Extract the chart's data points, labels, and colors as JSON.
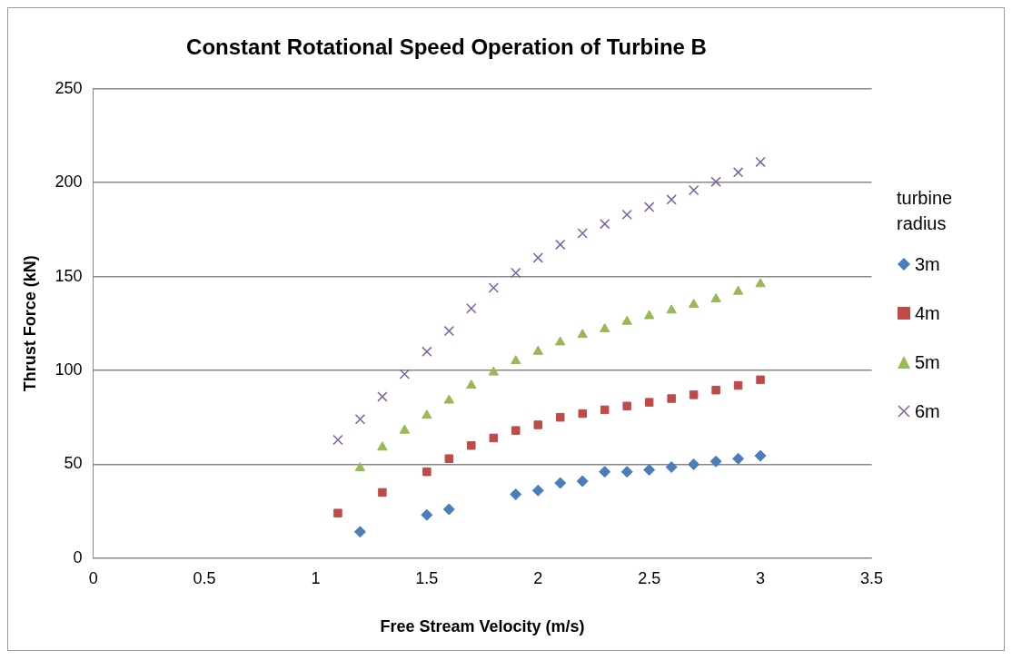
{
  "chart_data": {
    "type": "scatter",
    "title": "Constant Rotational Speed Operation of Turbine B",
    "xlabel": "Free Stream Velocity (m/s)",
    "ylabel": "Thrust Force (kN)",
    "legend_title": "turbine radius",
    "xlim": [
      0,
      3.5
    ],
    "xticks": [
      0,
      0.5,
      1,
      1.5,
      2,
      2.5,
      3,
      3.5
    ],
    "ylim": [
      0,
      250
    ],
    "yticks": [
      0,
      50,
      100,
      150,
      200,
      250
    ],
    "grid": "y",
    "legend": "right",
    "series": [
      {
        "name": "3m",
        "color": "#4a7ebb",
        "marker": "diamond",
        "x": [
          1.2,
          1.5,
          1.6,
          1.9,
          2.0,
          2.1,
          2.2,
          2.3,
          2.4,
          2.5,
          2.6,
          2.7,
          2.8,
          2.9,
          3.0
        ],
        "values": [
          14,
          23,
          26,
          34,
          36,
          40,
          41,
          46,
          46,
          47,
          48.5,
          50,
          51.5,
          53,
          54.5
        ]
      },
      {
        "name": "4m",
        "color": "#be4b48",
        "marker": "square",
        "x": [
          1.1,
          1.3,
          1.5,
          1.6,
          1.7,
          1.8,
          1.9,
          2.0,
          2.1,
          2.2,
          2.3,
          2.4,
          2.5,
          2.6,
          2.7,
          2.8,
          2.9,
          3.0
        ],
        "values": [
          24,
          35,
          46,
          53,
          60,
          64,
          68,
          71,
          75,
          77,
          79,
          81,
          83,
          85,
          87,
          89.5,
          92,
          95
        ]
      },
      {
        "name": "5m",
        "color": "#98b954",
        "marker": "triangle",
        "x": [
          1.2,
          1.3,
          1.4,
          1.5,
          1.6,
          1.7,
          1.8,
          1.9,
          2.0,
          2.1,
          2.2,
          2.3,
          2.4,
          2.5,
          2.6,
          2.7,
          2.8,
          2.9,
          3.0
        ],
        "values": [
          48,
          59,
          68,
          76,
          84,
          92,
          99,
          105,
          110,
          115,
          119,
          122,
          126,
          129,
          132,
          135,
          138,
          142,
          146
        ]
      },
      {
        "name": "6m",
        "color": "#7d60a0",
        "marker": "cross",
        "x": [
          1.1,
          1.2,
          1.3,
          1.4,
          1.5,
          1.6,
          1.7,
          1.8,
          1.9,
          2.0,
          2.1,
          2.2,
          2.3,
          2.4,
          2.5,
          2.6,
          2.7,
          2.8,
          2.9,
          3.0
        ],
        "values": [
          63,
          74,
          86,
          98,
          110,
          121,
          133,
          144,
          152,
          160,
          167,
          173,
          178,
          183,
          187,
          191,
          196,
          200.5,
          205.5,
          211
        ]
      }
    ]
  }
}
